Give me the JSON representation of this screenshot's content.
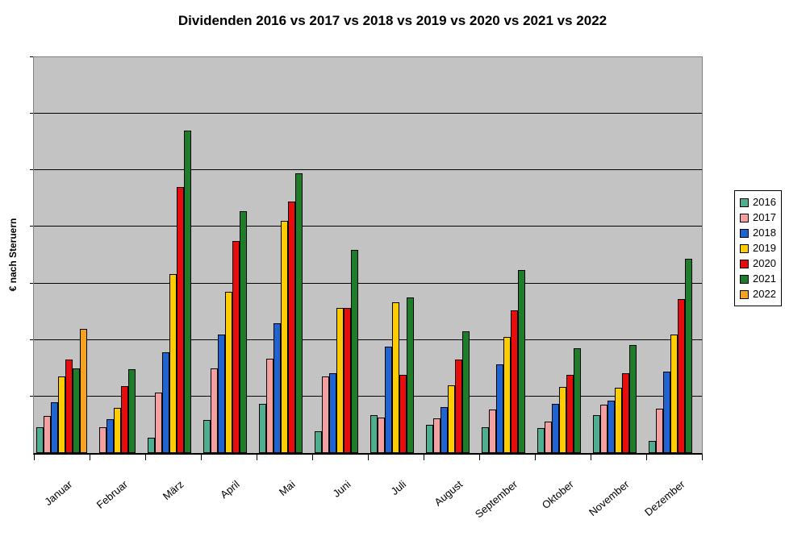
{
  "chart_data": {
    "type": "bar",
    "title": "Dividenden 2016 vs 2017 vs 2018 vs 2019 vs 2020 vs 2021 vs 2022",
    "xlabel": "",
    "ylabel": "€ nach Steruern",
    "categories": [
      "Januar",
      "Februar",
      "März",
      "April",
      "Mai",
      "Juni",
      "Juli",
      "August",
      "September",
      "Oktober",
      "November",
      "Dezember"
    ],
    "series": [
      {
        "name": "2016",
        "color": "#4FAE8F",
        "values": [
          45,
          0,
          27,
          58,
          87,
          38,
          67,
          50,
          46,
          44,
          67,
          22
        ]
      },
      {
        "name": "2017",
        "color": "#F4A0A0",
        "values": [
          65,
          45,
          107,
          150,
          167,
          135,
          63,
          62,
          77,
          55,
          85,
          79
        ]
      },
      {
        "name": "2018",
        "color": "#2064D2",
        "values": [
          90,
          60,
          178,
          210,
          230,
          141,
          188,
          81,
          157,
          87,
          93,
          144
        ]
      },
      {
        "name": "2019",
        "color": "#FFCC00",
        "values": [
          135,
          80,
          317,
          285,
          410,
          256,
          266,
          120,
          206,
          117,
          115,
          210
        ]
      },
      {
        "name": "2020",
        "color": "#E80D0D",
        "values": [
          165,
          118,
          470,
          375,
          445,
          256,
          138,
          166,
          252,
          139,
          141,
          272
        ]
      },
      {
        "name": "2021",
        "color": "#1E7D28",
        "values": [
          150,
          148,
          570,
          428,
          495,
          360,
          275,
          216,
          323,
          185,
          191,
          343
        ]
      },
      {
        "name": "2022",
        "color": "#F6A21E",
        "values": [
          220,
          null,
          null,
          null,
          null,
          null,
          null,
          null,
          null,
          null,
          null,
          null
        ]
      }
    ],
    "ylim": [
      0,
      700
    ],
    "gridline_interval": 100,
    "y_tick_labels": [],
    "grid": "horizontal",
    "legend_position": "right",
    "plot_bg": "#C3C3C3",
    "gridline_color": "#000000",
    "value_scale_note": "y axis shows no numeric labels; values estimated in relative units where one gridline interval = 100"
  }
}
